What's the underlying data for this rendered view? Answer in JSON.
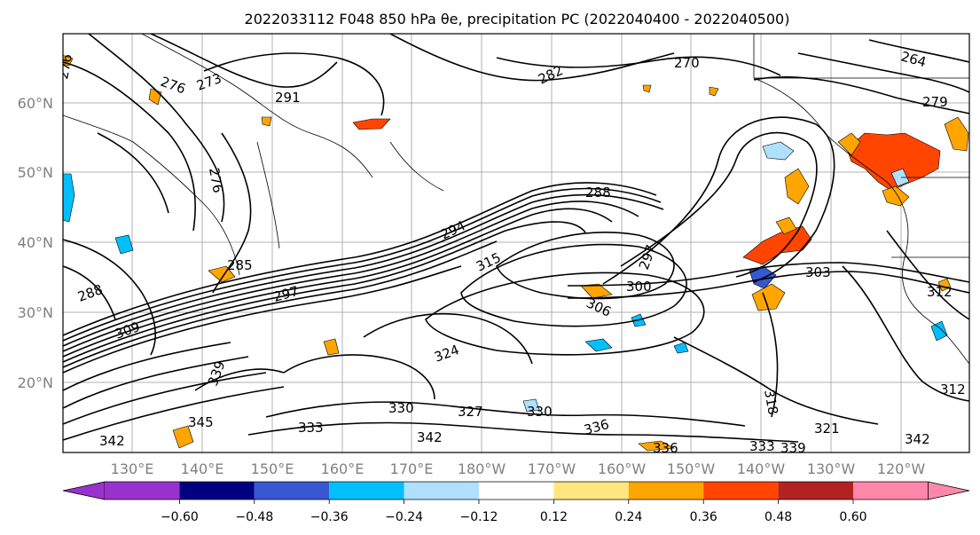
{
  "title": "2022033112 F048 850 hPa θe, precipitation PC (2022040400 - 2022040500)",
  "map": {
    "lat_labels": [
      "60°N",
      "50°N",
      "40°N",
      "30°N",
      "20°N"
    ],
    "lon_labels": [
      "130°E",
      "140°E",
      "150°E",
      "160°E",
      "170°E",
      "180°W",
      "170°W",
      "160°W",
      "150°W",
      "140°W",
      "130°W",
      "120°W"
    ],
    "contour_labels": [
      "273",
      "276",
      "264",
      "270",
      "282",
      "279",
      "285",
      "288",
      "294",
      "297",
      "300",
      "303",
      "306",
      "309",
      "312",
      "315",
      "318",
      "321",
      "324",
      "327",
      "330",
      "333",
      "336",
      "339",
      "342",
      "345",
      "291"
    ]
  },
  "colorbar": {
    "tick_labels": [
      "−0.60",
      "−0.48",
      "−0.36",
      "−0.24",
      "−0.12",
      "0.12",
      "0.24",
      "0.36",
      "0.48",
      "0.60"
    ],
    "colors": [
      "#9932cc",
      "#000080",
      "#3658d0",
      "#00bfff",
      "#b0e0ff",
      "#ffffff",
      "#ffe680",
      "#ffa500",
      "#ff4500",
      "#b22222",
      "#ff88aa"
    ]
  }
}
